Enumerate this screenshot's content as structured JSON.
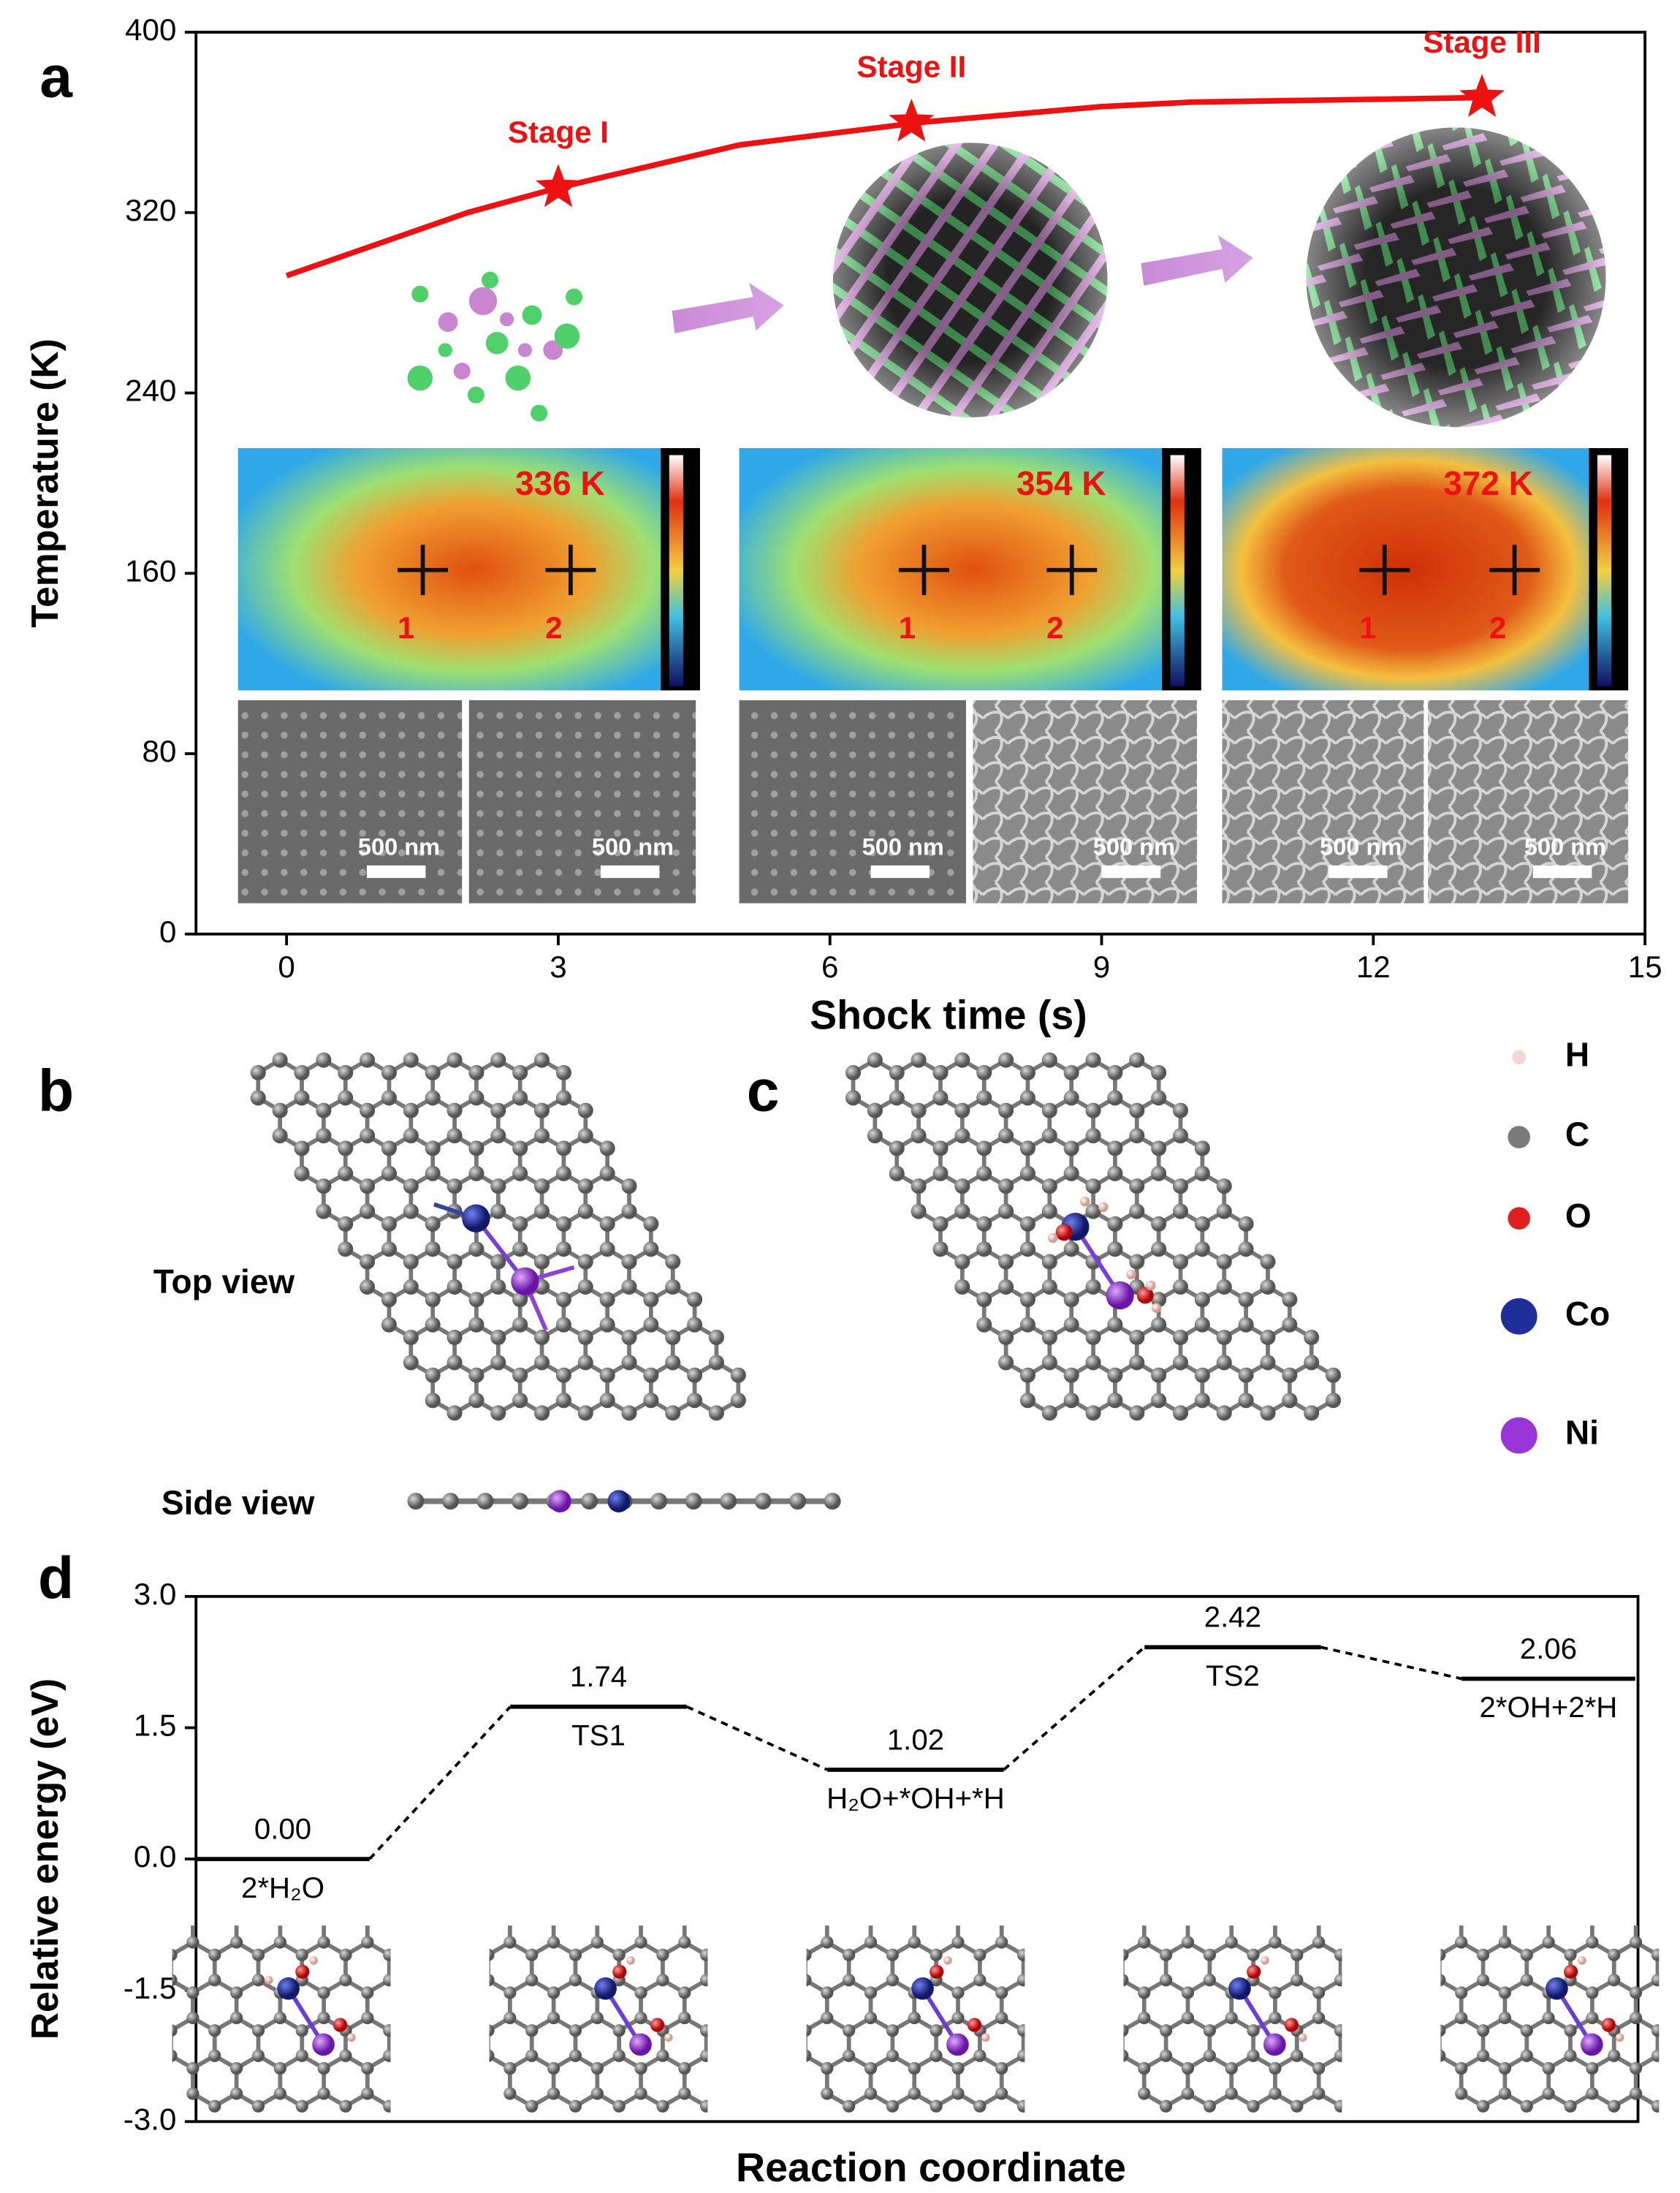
{
  "chart_data": [
    {
      "type": "line",
      "panel_label": "a",
      "ylabel": "Temperature (K)",
      "xlabel": "Shock time (s)",
      "xlim": [
        -1,
        15
      ],
      "ylim": [
        0,
        400
      ],
      "xticks": [
        0,
        3,
        6,
        9,
        12,
        15
      ],
      "yticks": [
        0,
        80,
        160,
        240,
        320,
        400
      ],
      "series": [
        {
          "color": "#ee1111",
          "x": [
            0,
            2,
            3,
            5,
            7,
            9,
            10,
            13.2
          ],
          "values": [
            292,
            320,
            331,
            350,
            360,
            367,
            369,
            371
          ]
        }
      ],
      "annotations": [
        {
          "text": "Stage I",
          "x": 3,
          "y": 331
        },
        {
          "text": "Stage II",
          "x": 6.9,
          "y": 360
        },
        {
          "text": "Stage III",
          "x": 13.2,
          "y": 371
        }
      ],
      "thermal_images": [
        {
          "label": "336 K",
          "points": [
            "1",
            "2"
          ]
        },
        {
          "label": "354 K",
          "points": [
            "1",
            "2"
          ]
        },
        {
          "label": "372 K",
          "points": [
            "1",
            "2"
          ]
        }
      ],
      "sem_scale_labels": [
        "500 nm",
        "500 nm",
        "500 nm",
        "500 nm",
        "500 nm",
        "500 nm"
      ]
    },
    {
      "type": "energy_levels",
      "panel_label": "d",
      "ylabel": "Relative energy (eV)",
      "xlabel": "Reaction coordinate",
      "ylim": [
        -3,
        3
      ],
      "yticks": [
        {
          "value": -3,
          "label": "-3.0"
        },
        {
          "value": -1.5,
          "label": "-1.5"
        },
        {
          "value": 0,
          "label": "0.0"
        },
        {
          "value": 1.5,
          "label": "1.5"
        },
        {
          "value": 3,
          "label": "3.0"
        }
      ],
      "categories": [
        "2*H₂O",
        "TS1",
        "H₂O+*OH+*H",
        "TS2",
        "2*OH+2*H"
      ],
      "values": [
        0,
        1.74,
        1.02,
        2.42,
        2.06
      ],
      "value_labels": [
        "0.00",
        "1.74",
        "1.02",
        "2.42",
        "2.06"
      ]
    }
  ],
  "panel_b": {
    "label": "b",
    "top_view": "Top view",
    "side_view": "Side view"
  },
  "panel_c": {
    "label": "c"
  },
  "legend": [
    {
      "label": "H",
      "color": "#f2d8d0"
    },
    {
      "label": "C",
      "color": "#7a7a7a"
    },
    {
      "label": "O",
      "color": "#e02020"
    },
    {
      "label": "Co",
      "color": "#1f2f9a"
    },
    {
      "label": "Ni",
      "color": "#9a35d8"
    }
  ]
}
